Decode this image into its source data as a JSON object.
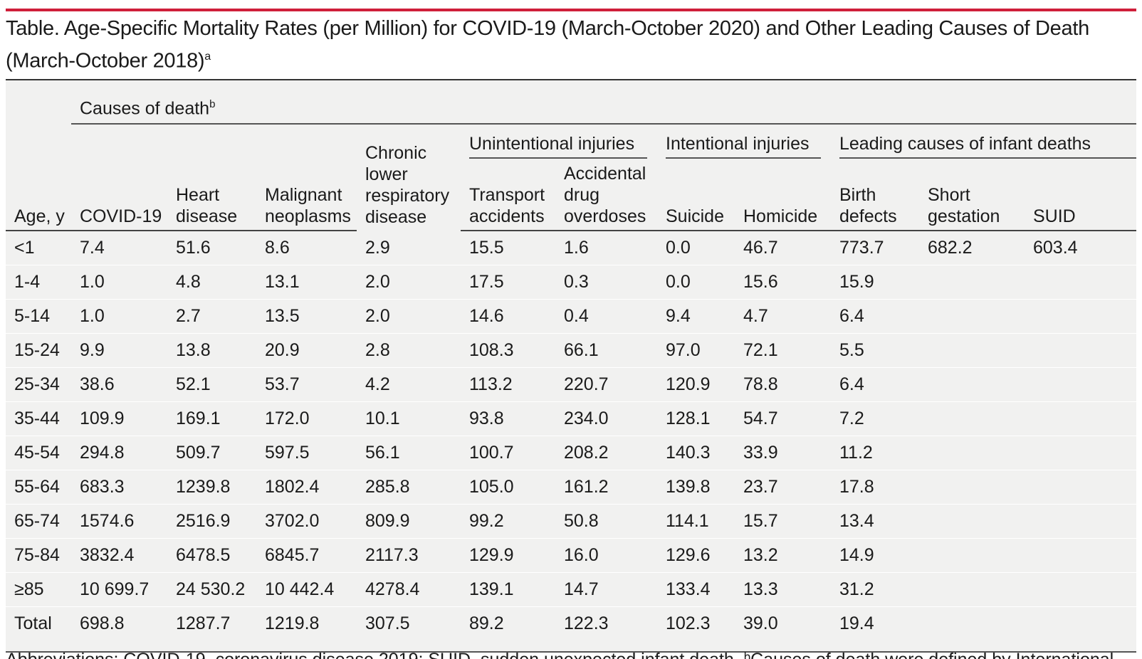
{
  "caption": {
    "text": "Table. Age-Specific Mortality Rates (per Million) for COVID-19 (March-October 2020) and Other Leading Causes of Death (March-October 2018)",
    "sup": "a"
  },
  "header": {
    "causes_label": "Causes of death",
    "causes_sup": "b",
    "group_unintentional": "Unintentional injuries",
    "group_intentional": "Intentional injuries",
    "group_infant": "Leading causes of infant deaths",
    "columns": {
      "age": "Age, y",
      "covid": "COVID-19",
      "heart": "Heart\ndisease",
      "malignant": "Malignant\nneoplasms",
      "chronic": "Chronic\nlower\nrespiratory\ndisease",
      "transport": "Transport\naccidents",
      "overdose": "Accidental\ndrug\noverdoses",
      "suicide": "Suicide",
      "homicide": "Homicide",
      "birth": "Birth\ndefects",
      "short": "Short\ngestation",
      "suid": "SUID"
    }
  },
  "rows": [
    {
      "age": "<1",
      "covid": "7.4",
      "heart": "51.6",
      "malignant": "8.6",
      "chronic": "2.9",
      "transport": "15.5",
      "overdose": "1.6",
      "suicide": "0.0",
      "homicide": "46.7",
      "birth": "773.7",
      "short": "682.2",
      "suid": "603.4"
    },
    {
      "age": "1-4",
      "covid": "1.0",
      "heart": "4.8",
      "malignant": "13.1",
      "chronic": "2.0",
      "transport": "17.5",
      "overdose": "0.3",
      "suicide": "0.0",
      "homicide": "15.6",
      "birth": "15.9",
      "short": "",
      "suid": ""
    },
    {
      "age": "5-14",
      "covid": "1.0",
      "heart": "2.7",
      "malignant": "13.5",
      "chronic": "2.0",
      "transport": "14.6",
      "overdose": "0.4",
      "suicide": "9.4",
      "homicide": "4.7",
      "birth": "6.4",
      "short": "",
      "suid": ""
    },
    {
      "age": "15-24",
      "covid": "9.9",
      "heart": "13.8",
      "malignant": "20.9",
      "chronic": "2.8",
      "transport": "108.3",
      "overdose": "66.1",
      "suicide": "97.0",
      "homicide": "72.1",
      "birth": "5.5",
      "short": "",
      "suid": ""
    },
    {
      "age": "25-34",
      "covid": "38.6",
      "heart": "52.1",
      "malignant": "53.7",
      "chronic": "4.2",
      "transport": "113.2",
      "overdose": "220.7",
      "suicide": "120.9",
      "homicide": "78.8",
      "birth": "6.4",
      "short": "",
      "suid": ""
    },
    {
      "age": "35-44",
      "covid": "109.9",
      "heart": "169.1",
      "malignant": "172.0",
      "chronic": "10.1",
      "transport": "93.8",
      "overdose": "234.0",
      "suicide": "128.1",
      "homicide": "54.7",
      "birth": "7.2",
      "short": "",
      "suid": ""
    },
    {
      "age": "45-54",
      "covid": "294.8",
      "heart": "509.7",
      "malignant": "597.5",
      "chronic": "56.1",
      "transport": "100.7",
      "overdose": "208.2",
      "suicide": "140.3",
      "homicide": "33.9",
      "birth": "11.2",
      "short": "",
      "suid": ""
    },
    {
      "age": "55-64",
      "covid": "683.3",
      "heart": "1239.8",
      "malignant": "1802.4",
      "chronic": "285.8",
      "transport": "105.0",
      "overdose": "161.2",
      "suicide": "139.8",
      "homicide": "23.7",
      "birth": "17.8",
      "short": "",
      "suid": ""
    },
    {
      "age": "65-74",
      "covid": "1574.6",
      "heart": "2516.9",
      "malignant": "3702.0",
      "chronic": "809.9",
      "transport": "99.2",
      "overdose": "50.8",
      "suicide": "114.1",
      "homicide": "15.7",
      "birth": "13.4",
      "short": "",
      "suid": ""
    },
    {
      "age": "75-84",
      "covid": "3832.4",
      "heart": "6478.5",
      "malignant": "6845.7",
      "chronic": "2117.3",
      "transport": "129.9",
      "overdose": "16.0",
      "suicide": "129.6",
      "homicide": "13.2",
      "birth": "14.9",
      "short": "",
      "suid": ""
    },
    {
      "age": "≥85",
      "covid": "10 699.7",
      "heart": "24 530.2",
      "malignant": "10 442.4",
      "chronic": "4278.4",
      "transport": "139.1",
      "overdose": "14.7",
      "suicide": "133.4",
      "homicide": "13.3",
      "birth": "31.2",
      "short": "",
      "suid": ""
    },
    {
      "age": "Total",
      "covid": "698.8",
      "heart": "1287.7",
      "malignant": "1219.8",
      "chronic": "307.5",
      "transport": "89.2",
      "overdose": "122.3",
      "suicide": "102.3",
      "homicide": "39.0",
      "birth": "19.4",
      "short": "",
      "suid": ""
    }
  ],
  "footnote_fragment": "Abbreviations: COVID-19, coronavirus disease 2019; SUID, sudden unexpected infant death.   ᵇCauses of death were defined by International Statistical",
  "colors": {
    "accent_red": "#cf1f3a",
    "table_bg": "#f1f1f0",
    "rule": "#444444"
  }
}
